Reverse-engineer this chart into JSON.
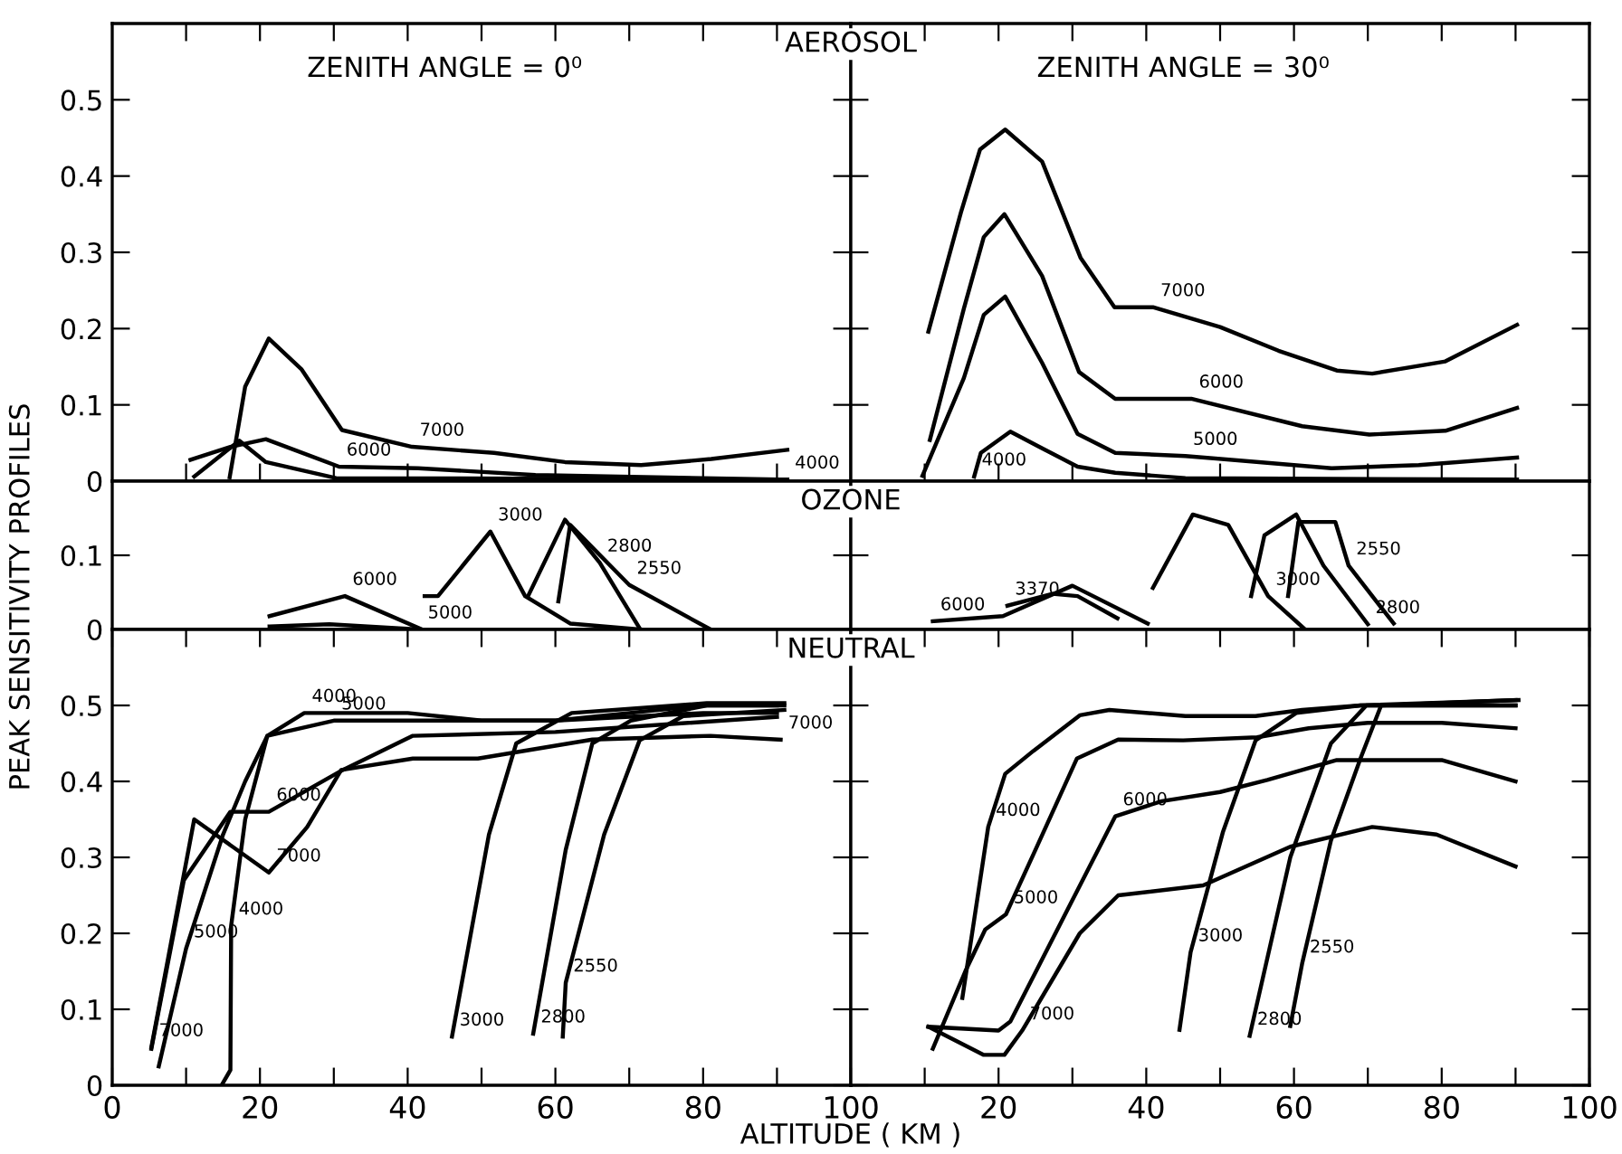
{
  "chart_data": [
    {
      "type": "line",
      "title": "AEROSOL",
      "xlim": [
        0,
        100
      ],
      "ylim": [
        0,
        0.6
      ],
      "tick_labels": "y",
      "xticks": [
        {
          "value": 10,
          "label": null
        },
        {
          "value": 20,
          "label": null
        },
        {
          "value": 30,
          "label": null
        },
        {
          "value": 40,
          "label": null
        },
        {
          "value": 50,
          "label": null
        },
        {
          "value": 60,
          "label": null
        },
        {
          "value": 70,
          "label": null
        },
        {
          "value": 80,
          "label": null
        },
        {
          "value": 90,
          "label": null
        }
      ],
      "yticks": [
        0,
        0.1,
        0.2,
        0.3,
        0.4,
        0.5
      ],
      "series": [
        {
          "color": "#000000",
          "x": [
            15.9,
            18,
            21.2,
            25.6,
            31.1,
            40.6,
            51.7,
            61.3,
            71.6,
            81.1,
            91.4
          ],
          "values": [
            0.005,
            0.124,
            0.187,
            0.147,
            0.067,
            0.045,
            0.037,
            0.025,
            0.021,
            0.029,
            0.041
          ]
        },
        {
          "color": "#000000",
          "x": [
            10.6,
            16,
            20.8,
            30.7,
            41.4,
            57.3,
            91.4
          ],
          "values": [
            0.028,
            0.045,
            0.055,
            0.019,
            0.017,
            0.008,
            0.002
          ]
        },
        {
          "color": "#000000",
          "x": [
            11.1,
            17.2,
            20.8,
            30.3,
            91.4
          ],
          "values": [
            0.006,
            0.053,
            0.025,
            0.004,
            0.002
          ]
        }
      ],
      "annotations": [
        "ZENITH ANGLE = 0⁰",
        {
          "text": "7000",
          "x": 40.6,
          "y": 0.045
        },
        {
          "text": "6000",
          "x": 30.7,
          "y": 0.019
        },
        {
          "text": "4000",
          "x": 91.4,
          "y": 0.002
        }
      ]
    },
    {
      "type": "line",
      "xlim": [
        0,
        100
      ],
      "ylim": [
        0,
        0.6
      ],
      "tick_labels": false,
      "xticks": [
        {
          "value": 10,
          "label": null
        },
        {
          "value": 20,
          "label": null
        },
        {
          "value": 30,
          "label": null
        },
        {
          "value": 40,
          "label": null
        },
        {
          "value": 50,
          "label": null
        },
        {
          "value": 60,
          "label": null
        },
        {
          "value": 70,
          "label": null
        },
        {
          "value": 80,
          "label": null
        },
        {
          "value": 90,
          "label": null
        }
      ],
      "yticks": [
        0,
        0.1,
        0.2,
        0.3,
        0.4,
        0.5
      ],
      "series": [
        {
          "color": "#000000",
          "x": [
            10.5,
            14.9,
            17.5,
            20.9,
            25.9,
            31.1,
            35.7,
            40.9,
            50,
            57.9,
            65.8,
            70.6,
            80.5,
            90.2
          ],
          "values": [
            0.196,
            0.352,
            0.435,
            0.461,
            0.419,
            0.293,
            0.228,
            0.228,
            0.202,
            0.171,
            0.145,
            0.141,
            0.157,
            0.205
          ]
        },
        {
          "color": "#000000",
          "x": [
            10.7,
            15.3,
            18,
            20.8,
            25.9,
            30.9,
            35.8,
            46.1,
            61.1,
            70.2,
            80.5,
            90.2
          ],
          "values": [
            0.054,
            0.226,
            0.32,
            0.35,
            0.269,
            0.143,
            0.108,
            0.108,
            0.072,
            0.061,
            0.066,
            0.096
          ]
        },
        {
          "color": "#000000",
          "x": [
            9.7,
            15.3,
            18,
            20.9,
            25.9,
            30.7,
            35.8,
            45.3,
            65.1,
            76.9,
            90.2
          ],
          "values": [
            0.007,
            0.135,
            0.218,
            0.242,
            0.155,
            0.062,
            0.037,
            0.033,
            0.017,
            0.021,
            0.031
          ]
        },
        {
          "color": "#000000",
          "x": [
            16.7,
            17.6,
            21.6,
            25.5,
            30.7,
            35.8,
            45.3,
            90.2
          ],
          "values": [
            0.006,
            0.037,
            0.065,
            0.045,
            0.019,
            0.011,
            0.004,
            0.002
          ]
        }
      ],
      "annotations": [
        "ZENITH ANGLE = 30⁰",
        {
          "text": "7000",
          "x": 40.9,
          "y": 0.228
        },
        {
          "text": "6000",
          "x": 46.1,
          "y": 0.108
        },
        {
          "text": "5000",
          "x": 45.3,
          "y": 0.033
        },
        {
          "text": "4000",
          "x": 16.7,
          "y": 0.006
        }
      ]
    },
    {
      "type": "line",
      "title": "OZONE",
      "ylabel": "PEAK SENSITIVITY PROFILES",
      "xlim": [
        0,
        100
      ],
      "ylim": [
        0,
        0.2
      ],
      "tick_labels": "y",
      "yticks": [
        0,
        0.1
      ],
      "series": [
        {
          "color": "#000000",
          "x": [
            21.3,
            31.5,
            41.7
          ],
          "values": [
            0.018,
            0.045,
            0.001
          ]
        },
        {
          "color": "#000000",
          "x": [
            21.3,
            29.4,
            41.7
          ],
          "values": [
            0.004,
            0.007,
            0.0
          ]
        },
        {
          "color": "#000000",
          "x": [
            42.3,
            44.1,
            51.2,
            55.9,
            62,
            71.5
          ],
          "values": [
            0.045,
            0.045,
            0.132,
            0.045,
            0.008,
            0.0
          ]
        },
        {
          "color": "#000000",
          "x": [
            56.3,
            61.3,
            66,
            71.5
          ],
          "values": [
            0.045,
            0.148,
            0.09,
            0.0
          ]
        },
        {
          "color": "#000000",
          "x": [
            60.4,
            62,
            70,
            81
          ],
          "values": [
            0.038,
            0.141,
            0.06,
            0.0
          ]
        }
      ],
      "annotations": [
        {
          "text": "3000",
          "x": 51.2,
          "y": 0.132
        },
        {
          "text": "6000",
          "x": 31.5,
          "y": 0.045
        },
        {
          "text": "5000",
          "x": 41.7,
          "y": 0.0
        },
        {
          "text": "2800",
          "x": 66,
          "y": 0.09
        },
        {
          "text": "2550",
          "x": 70,
          "y": 0.06
        }
      ]
    },
    {
      "type": "line",
      "xlim": [
        0,
        100
      ],
      "ylim": [
        0,
        0.2
      ],
      "tick_labels": false,
      "yticks": [
        0,
        0.1
      ],
      "series": [
        {
          "color": "#000000",
          "x": [
            11.1,
            20.6,
            30,
            40.2
          ],
          "values": [
            0.011,
            0.018,
            0.059,
            0.008
          ]
        },
        {
          "color": "#000000",
          "x": [
            21.2,
            27.3,
            30.7,
            36.1
          ],
          "values": [
            0.032,
            0.048,
            0.045,
            0.015
          ]
        },
        {
          "color": "#000000",
          "x": [
            40.9,
            46.3,
            51.1,
            56.5,
            61.5
          ],
          "values": [
            0.056,
            0.155,
            0.141,
            0.045,
            0.0
          ]
        },
        {
          "color": "#000000",
          "x": [
            54.2,
            56,
            60.3,
            64,
            70
          ],
          "values": [
            0.045,
            0.127,
            0.155,
            0.086,
            0.007
          ]
        },
        {
          "color": "#000000",
          "x": [
            59.2,
            60.6,
            65.6,
            67.4,
            73.5
          ],
          "values": [
            0.045,
            0.145,
            0.145,
            0.086,
            0.008
          ]
        }
      ],
      "annotations": [
        {
          "text": "6000",
          "x": 11.1,
          "y": 0.011
        },
        {
          "text": "3370",
          "x": 21.2,
          "y": 0.032
        },
        {
          "text": "3000",
          "x": 56.5,
          "y": 0.045
        },
        {
          "text": "2800",
          "x": 70,
          "y": 0.007
        },
        {
          "text": "2550",
          "x": 67.4,
          "y": 0.086
        }
      ]
    },
    {
      "type": "line",
      "title": "NEUTRAL",
      "xlabel": "ALTITUDE ( KM )",
      "xlim": [
        0,
        100
      ],
      "ylim": [
        0,
        0.6
      ],
      "xticks": [
        0,
        {
          "value": 10,
          "label": null
        },
        20,
        {
          "value": 30,
          "label": null
        },
        40,
        {
          "value": 50,
          "label": null
        },
        60,
        {
          "value": 70,
          "label": null
        },
        80,
        {
          "value": 90,
          "label": null
        },
        100
      ],
      "yticks": [
        0,
        0.1,
        0.2,
        0.3,
        0.4,
        0.5
      ],
      "series": [
        {
          "color": "#000000",
          "x": [
            14.8,
            16,
            16.1,
            18,
            21,
            26,
            40,
            50,
            60,
            70,
            80,
            90
          ],
          "values": [
            0,
            0.02,
            0.21,
            0.35,
            0.46,
            0.49,
            0.49,
            0.48,
            0.48,
            0.49,
            0.5,
            0.5
          ]
        },
        {
          "color": "#000000",
          "x": [
            6.3,
            10,
            15,
            18,
            21,
            30,
            40,
            60,
            80,
            90
          ],
          "values": [
            0.025,
            0.18,
            0.33,
            0.4,
            0.46,
            0.48,
            0.48,
            0.48,
            0.49,
            0.49
          ]
        },
        {
          "color": "#000000",
          "x": [
            5.3,
            9.7,
            16,
            21.2,
            31.2,
            40.7,
            60,
            90
          ],
          "values": [
            0.048,
            0.27,
            0.36,
            0.36,
            0.415,
            0.46,
            0.465,
            0.485
          ]
        },
        {
          "color": "#000000",
          "x": [
            5.3,
            11.1,
            21.2,
            26.4,
            31,
            40.7,
            49.5,
            65,
            81,
            90.5
          ],
          "values": [
            0.05,
            0.35,
            0.28,
            0.34,
            0.415,
            0.43,
            0.43,
            0.455,
            0.46,
            0.455
          ]
        },
        {
          "color": "#000000",
          "x": [
            46,
            51,
            54.7,
            62.2,
            80.5,
            91
          ],
          "values": [
            0.064,
            0.33,
            0.45,
            0.49,
            0.503,
            0.503
          ]
        },
        {
          "color": "#000000",
          "x": [
            57,
            61.4,
            65,
            70.2,
            80.5,
            91
          ],
          "values": [
            0.068,
            0.31,
            0.45,
            0.48,
            0.5,
            0.5
          ]
        },
        {
          "color": "#000000",
          "x": [
            61,
            61.4,
            66.6,
            71.4,
            77.3,
            91
          ],
          "values": [
            0.064,
            0.135,
            0.33,
            0.454,
            0.486,
            0.494
          ]
        }
      ],
      "annotations": [
        {
          "text": "7000",
          "x": 5.3,
          "y": 0.05
        },
        {
          "text": "5000",
          "x": 10,
          "y": 0.18
        },
        {
          "text": "4000",
          "x": 16.1,
          "y": 0.21
        },
        {
          "text": "6000",
          "x": 21.2,
          "y": 0.36
        },
        {
          "text": "7000",
          "x": 21.2,
          "y": 0.28
        },
        {
          "text": "5000",
          "x": 30,
          "y": 0.48
        },
        {
          "text": "4000",
          "x": 26,
          "y": 0.49
        },
        {
          "text": "3000",
          "x": 46,
          "y": 0.064
        },
        {
          "text": "2800",
          "x": 57,
          "y": 0.068
        },
        {
          "text": "2550",
          "x": 61.4,
          "y": 0.135
        },
        {
          "text": "7000",
          "x": 90.5,
          "y": 0.455
        }
      ]
    },
    {
      "type": "line",
      "xlim": [
        0,
        100
      ],
      "ylim": [
        0,
        0.6
      ],
      "tick_labels": "x",
      "xticks": [
        {
          "value": 0,
          "label": null
        },
        {
          "value": 10,
          "label": null
        },
        20,
        {
          "value": 30,
          "label": null
        },
        40,
        {
          "value": 50,
          "label": null
        },
        60,
        {
          "value": 70,
          "label": null
        },
        80,
        {
          "value": 90,
          "label": null
        },
        100
      ],
      "yticks": [
        0,
        0.1,
        0.2,
        0.3,
        0.4,
        0.5
      ],
      "series": [
        {
          "color": "#000000",
          "x": [
            15.1,
            18.6,
            20.9,
            24.7,
            31,
            35,
            45.3,
            54.8,
            61.1,
            69,
            90.4
          ],
          "values": [
            0.115,
            0.34,
            0.41,
            0.44,
            0.487,
            0.494,
            0.486,
            0.486,
            0.494,
            0.5,
            0.507
          ]
        },
        {
          "color": "#000000",
          "x": [
            11.1,
            15.5,
            18.2,
            21,
            25,
            30.6,
            36.2,
            45,
            55,
            62,
            70,
            80,
            90
          ],
          "values": [
            0.048,
            0.15,
            0.205,
            0.225,
            0.31,
            0.43,
            0.455,
            0.454,
            0.458,
            0.47,
            0.477,
            0.477,
            0.47
          ]
        },
        {
          "color": "#000000",
          "x": [
            10.5,
            20,
            21.6,
            35.8,
            42.1,
            50,
            56.4,
            65.8,
            80,
            90
          ],
          "values": [
            0.077,
            0.072,
            0.084,
            0.354,
            0.374,
            0.386,
            0.402,
            0.428,
            0.428,
            0.4
          ]
        },
        {
          "color": "#000000",
          "x": [
            10.5,
            18,
            20.8,
            23.2,
            31,
            36.2,
            47.7,
            59.5,
            70.6,
            79.3,
            90
          ],
          "values": [
            0.077,
            0.04,
            0.04,
            0.072,
            0.2,
            0.25,
            0.263,
            0.314,
            0.34,
            0.33,
            0.288
          ]
        },
        {
          "color": "#000000",
          "x": [
            44.5,
            46,
            50.4,
            54.8,
            60.3,
            69,
            90
          ],
          "values": [
            0.073,
            0.175,
            0.334,
            0.454,
            0.49,
            0.5,
            0.5
          ]
        },
        {
          "color": "#000000",
          "x": [
            54,
            59.5,
            65,
            69.8,
            90
          ],
          "values": [
            0.065,
            0.3,
            0.45,
            0.5,
            0.5
          ]
        },
        {
          "color": "#000000",
          "x": [
            59.5,
            61.1,
            65,
            69,
            71.8,
            90
          ],
          "values": [
            0.078,
            0.16,
            0.322,
            0.43,
            0.5,
            0.507
          ]
        }
      ],
      "annotations": [
        {
          "text": "4000",
          "x": 18.6,
          "y": 0.34
        },
        {
          "text": "5000",
          "x": 21,
          "y": 0.225
        },
        {
          "text": "6000",
          "x": 35.8,
          "y": 0.354
        },
        {
          "text": "7000",
          "x": 23.2,
          "y": 0.072
        },
        {
          "text": "3000",
          "x": 46,
          "y": 0.175
        },
        {
          "text": "2800",
          "x": 54,
          "y": 0.065
        },
        {
          "text": "2550",
          "x": 61.1,
          "y": 0.16
        }
      ]
    }
  ]
}
